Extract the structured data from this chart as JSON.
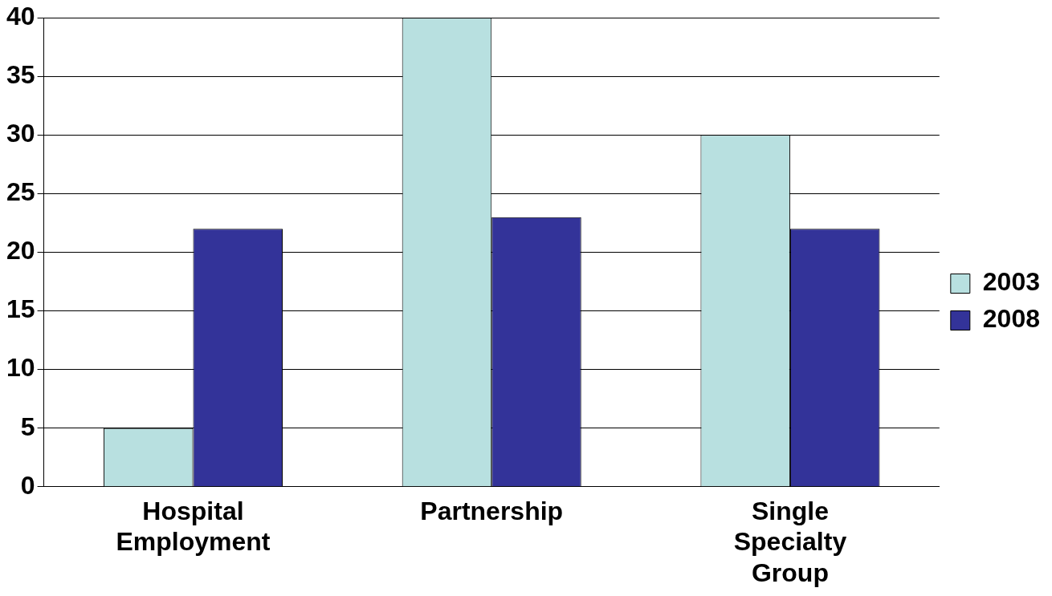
{
  "chart_data": {
    "type": "bar",
    "categories": [
      "Hospital Employment",
      "Partnership",
      "Single Specialty Group"
    ],
    "series": [
      {
        "name": "2003",
        "color": "#b8e0e0",
        "values": [
          5,
          40,
          30
        ]
      },
      {
        "name": "2008",
        "color": "#333399",
        "values": [
          22,
          23,
          22
        ]
      }
    ],
    "ylim": [
      0,
      40
    ],
    "yticks": [
      0,
      5,
      10,
      15,
      20,
      25,
      30,
      35,
      40
    ],
    "grid": "y",
    "legend": "right"
  }
}
